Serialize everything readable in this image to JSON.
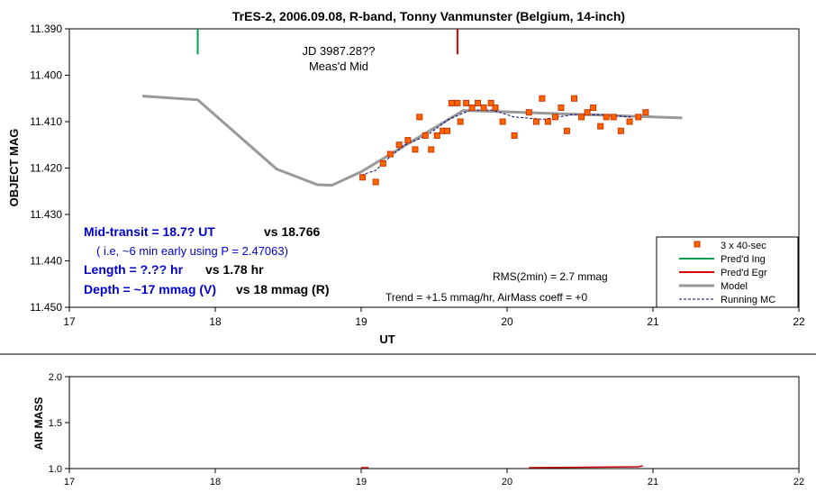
{
  "chart_data": [
    {
      "type": "scatter",
      "title": "TrES-2, 2006.09.08, R-band, Tonny Vanmunster (Belgium, 14-inch)",
      "xlabel": "UT",
      "ylabel": "OBJECT MAG",
      "xlim": [
        17,
        22
      ],
      "ylim": [
        11.39,
        11.45
      ],
      "y_inverted": true,
      "x_ticks": [
        "17",
        "18",
        "19",
        "20",
        "21",
        "22"
      ],
      "y_ticks": [
        "11.390",
        "11.400",
        "11.410",
        "11.420",
        "11.430",
        "11.440",
        "11.450"
      ],
      "grid": false,
      "legend_position": "bottom-right",
      "colors": {
        "points": "#ff6600",
        "point_edge": "#cc3300",
        "ingress": "#00a050",
        "egress": "#e00000",
        "model": "#999999",
        "running": "#000080",
        "annotation_blue": "#0000cc"
      },
      "legend": [
        {
          "label": "3 x 40-sec",
          "kind": "marker"
        },
        {
          "label": "Pred'd Ing",
          "kind": "green-line"
        },
        {
          "label": "Pred'd Egr",
          "kind": "red-line"
        },
        {
          "label": "Model",
          "kind": "gray-line"
        },
        {
          "label": "Running MC",
          "kind": "dashed-line"
        }
      ],
      "series": [
        {
          "name": "3 x 40-sec",
          "points": [
            [
              19.01,
              11.422
            ],
            [
              19.1,
              11.423
            ],
            [
              19.15,
              11.419
            ],
            [
              19.2,
              11.417
            ],
            [
              19.26,
              11.415
            ],
            [
              19.32,
              11.414
            ],
            [
              19.37,
              11.416
            ],
            [
              19.4,
              11.409
            ],
            [
              19.44,
              11.413
            ],
            [
              19.48,
              11.416
            ],
            [
              19.52,
              11.413
            ],
            [
              19.56,
              11.412
            ],
            [
              19.59,
              11.412
            ],
            [
              19.62,
              11.406
            ],
            [
              19.66,
              11.406
            ],
            [
              19.68,
              11.41
            ],
            [
              19.72,
              11.406
            ],
            [
              19.76,
              11.407
            ],
            [
              19.8,
              11.406
            ],
            [
              19.84,
              11.407
            ],
            [
              19.89,
              11.406
            ],
            [
              19.92,
              11.407
            ],
            [
              19.97,
              11.41
            ],
            [
              20.05,
              11.413
            ],
            [
              20.15,
              11.408
            ],
            [
              20.2,
              11.41
            ],
            [
              20.24,
              11.405
            ],
            [
              20.28,
              11.41
            ],
            [
              20.33,
              11.409
            ],
            [
              20.37,
              11.407
            ],
            [
              20.41,
              11.412
            ],
            [
              20.46,
              11.405
            ],
            [
              20.51,
              11.409
            ],
            [
              20.55,
              11.408
            ],
            [
              20.59,
              11.407
            ],
            [
              20.64,
              11.411
            ],
            [
              20.68,
              11.409
            ],
            [
              20.73,
              11.409
            ],
            [
              20.78,
              11.412
            ],
            [
              20.84,
              11.41
            ],
            [
              20.9,
              11.409
            ],
            [
              20.95,
              11.408
            ]
          ]
        },
        {
          "name": "Model",
          "points": [
            [
              17.5,
              11.4045
            ],
            [
              17.88,
              11.4053
            ],
            [
              18.42,
              11.4202
            ],
            [
              18.7,
              11.4236
            ],
            [
              18.8,
              11.4237
            ],
            [
              19.0,
              11.4208
            ],
            [
              19.7,
              11.4076
            ],
            [
              20.0,
              11.4079
            ],
            [
              21.2,
              11.4092
            ]
          ]
        },
        {
          "name": "Running MC",
          "points": [
            [
              19.0,
              11.4215
            ],
            [
              19.1,
              11.4205
            ],
            [
              19.2,
              11.4175
            ],
            [
              19.3,
              11.415
            ],
            [
              19.45,
              11.413
            ],
            [
              19.6,
              11.4095
            ],
            [
              19.75,
              11.4075
            ],
            [
              19.9,
              11.4075
            ],
            [
              20.05,
              11.409
            ],
            [
              20.25,
              11.4095
            ],
            [
              20.45,
              11.4085
            ],
            [
              20.65,
              11.4085
            ],
            [
              20.85,
              11.409
            ]
          ]
        }
      ],
      "predicted_ingress_ut": 17.88,
      "predicted_egress_ut": 19.66,
      "annotations": {
        "jd": "JD 3987.28??",
        "meas_mid": "Meas'd Mid",
        "mid_transit": "Mid-transit = 18.7? UT",
        "mid_transit_vs": "vs 18.766",
        "early_note": "( i.e, ~6 min early using P = 2.47063)",
        "length": "Length = ?.?? hr",
        "length_vs": "vs 1.78 hr",
        "depth": "Depth = ~17 mmag (V)",
        "depth_vs": "vs 18 mmag (R)",
        "rms": "RMS(2min) = 2.7 mmag",
        "trend": "Trend = +1.5 mmag/hr, AirMass coeff = +0"
      }
    },
    {
      "type": "line",
      "title": "",
      "xlabel": "",
      "ylabel": "AIR MASS",
      "xlim": [
        17,
        22
      ],
      "ylim": [
        1.0,
        2.0
      ],
      "x_ticks": [
        "17",
        "18",
        "19",
        "20",
        "21",
        "22"
      ],
      "y_ticks": [
        "1.0",
        "1.5",
        "2.0"
      ],
      "grid": false,
      "color": "#cc0000",
      "segments": [
        [
          [
            19.0,
            1.0
          ],
          [
            19.05,
            1.0
          ]
        ],
        [
          [
            20.15,
            1.0
          ],
          [
            20.9,
            1.01
          ],
          [
            20.93,
            1.02
          ]
        ]
      ]
    }
  ]
}
